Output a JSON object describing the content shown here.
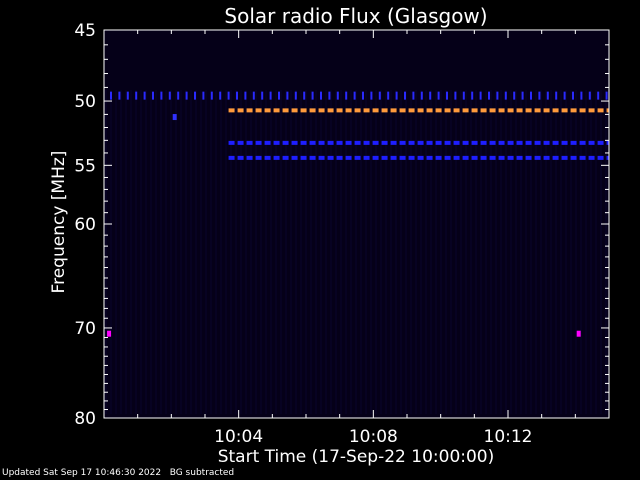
{
  "chart_data": {
    "type": "heatmap",
    "title": "Solar radio Flux (Glasgow)",
    "xlabel": "Start Time (17-Sep-22 10:00:00)",
    "ylabel": "Frequency [MHz]",
    "x_range_minutes": [
      0,
      15
    ],
    "y_range_mhz": [
      45,
      80
    ],
    "y_scale": "log",
    "x_ticks": [
      {
        "label": "10:04",
        "minute": 4
      },
      {
        "label": "10:08",
        "minute": 8
      },
      {
        "label": "10:12",
        "minute": 12
      }
    ],
    "y_ticks": [
      {
        "label": "45",
        "mhz": 45
      },
      {
        "label": "50",
        "mhz": 50
      },
      {
        "label": "55",
        "mhz": 55
      },
      {
        "label": "60",
        "mhz": 60
      },
      {
        "label": "70",
        "mhz": 70
      },
      {
        "label": "80",
        "mhz": 80
      }
    ],
    "background_color": "#050018",
    "interference_bands": [
      {
        "mhz": 49.6,
        "start_minute": 0,
        "end_minute": 15,
        "color": "#2a2aff",
        "style": "ticks"
      },
      {
        "mhz": 50.7,
        "start_minute": 3.7,
        "end_minute": 15,
        "color": "#ff9a3c",
        "style": "dashed"
      },
      {
        "mhz": 53.2,
        "start_minute": 3.7,
        "end_minute": 15,
        "color": "#1e1eff",
        "style": "dashed"
      },
      {
        "mhz": 54.4,
        "start_minute": 3.7,
        "end_minute": 15,
        "color": "#1e1eff",
        "style": "dashed"
      }
    ],
    "spots": [
      {
        "mhz": 70.6,
        "minute": 0.15,
        "color": "#ff00ff"
      },
      {
        "mhz": 70.6,
        "minute": 14.1,
        "color": "#ff00ff"
      },
      {
        "mhz": 51.2,
        "minute": 2.1,
        "color": "#3030ff"
      }
    ]
  },
  "footer": {
    "updated": "Updated Sat Sep 17 10:46:30 2022",
    "note": "BG subtracted"
  }
}
